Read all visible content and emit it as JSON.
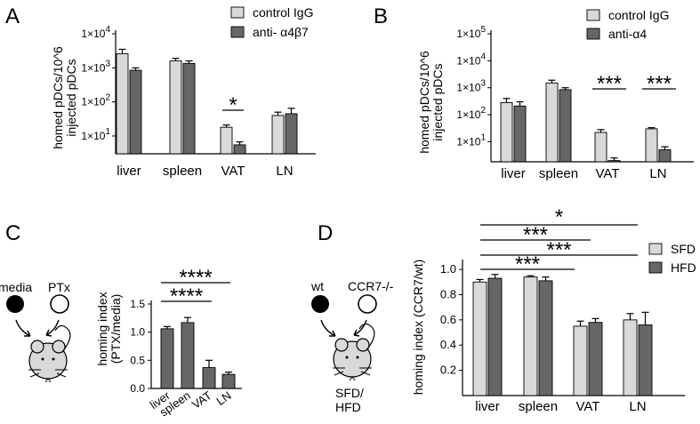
{
  "colors": {
    "light": "#d9d9d9",
    "dark": "#666666",
    "axis": "#000000"
  },
  "panels": {
    "A": "A",
    "B": "B",
    "C": "C",
    "D": "D"
  },
  "chart_data": [
    {
      "id": "A",
      "type": "bar",
      "scale": "log",
      "ylabel_lines": [
        "homed pDCs/10^6",
        "injected pDCs"
      ],
      "yticks": [
        {
          "value": 10,
          "base": "1×10",
          "exp": "1"
        },
        {
          "value": 100,
          "base": "1×10",
          "exp": "2"
        },
        {
          "value": 1000,
          "base": "1×10",
          "exp": "3"
        },
        {
          "value": 10000,
          "base": "1×10",
          "exp": "4"
        }
      ],
      "ylim": [
        3,
        10000
      ],
      "categories": [
        "liver",
        "spleen",
        "VAT",
        "LN"
      ],
      "series": [
        {
          "name": "control IgG",
          "values": [
            2600,
            1600,
            18,
            40
          ],
          "errors": [
            900,
            300,
            3,
            10
          ]
        },
        {
          "name": "anti- α4β7",
          "values": [
            850,
            1350,
            5.5,
            45
          ],
          "errors": [
            150,
            250,
            1.2,
            20
          ]
        }
      ],
      "legend": [
        "control IgG",
        "anti- α4β7"
      ],
      "significance": [
        {
          "text": "*",
          "category": "VAT"
        }
      ]
    },
    {
      "id": "B",
      "type": "bar",
      "scale": "log",
      "ylabel_lines": [
        "homed pDCs/10^6",
        "injected pDCs"
      ],
      "yticks": [
        {
          "value": 10,
          "base": "1×10",
          "exp": "1"
        },
        {
          "value": 100,
          "base": "1×10",
          "exp": "2"
        },
        {
          "value": 1000,
          "base": "1×10",
          "exp": "3"
        },
        {
          "value": 10000,
          "base": "1×10",
          "exp": "4"
        },
        {
          "value": 100000,
          "base": "1×10",
          "exp": "5"
        }
      ],
      "ylim": [
        1.8,
        100000
      ],
      "categories": [
        "liver",
        "spleen",
        "VAT",
        "LN"
      ],
      "series": [
        {
          "name": "control IgG",
          "values": [
            280,
            1500,
            22,
            30
          ],
          "errors": [
            120,
            400,
            6,
            3
          ]
        },
        {
          "name": "anti-α4",
          "values": [
            210,
            850,
            2.0,
            5
          ],
          "errors": [
            90,
            150,
            0.5,
            1.5
          ]
        }
      ],
      "legend": [
        "control IgG",
        "anti-α4"
      ],
      "significance": [
        {
          "text": "***",
          "category": "VAT"
        },
        {
          "text": "***",
          "category": "LN"
        }
      ]
    },
    {
      "id": "C",
      "type": "bar",
      "scale": "linear",
      "ylabel_lines": [
        "homing index",
        "(PTX/media)"
      ],
      "ylim": [
        0,
        1.5
      ],
      "yticks": [
        "0.0",
        "0.5",
        "1.0",
        "1.5"
      ],
      "categories": [
        "liver",
        "spleen",
        "VAT",
        "LN"
      ],
      "series": [
        {
          "name": "PTX/media",
          "values": [
            1.06,
            1.17,
            0.37,
            0.25
          ],
          "errors": [
            0.04,
            0.09,
            0.13,
            0.04
          ]
        }
      ],
      "significance": [
        {
          "text": "****",
          "from": "liver",
          "to": "LN"
        },
        {
          "text": "****",
          "from": "liver",
          "to": "VAT"
        }
      ]
    },
    {
      "id": "D",
      "type": "bar",
      "scale": "linear",
      "ylabel": "homing index (CCR7/wt)",
      "ylim": [
        0,
        1.05
      ],
      "yticks": [
        "0.2",
        "0.4",
        "0.6",
        "0.8",
        "1.0"
      ],
      "categories": [
        "liver",
        "spleen",
        "VAT",
        "LN"
      ],
      "series": [
        {
          "name": "SFD",
          "values": [
            0.9,
            0.94,
            0.55,
            0.6
          ],
          "errors": [
            0.02,
            0.01,
            0.04,
            0.05
          ]
        },
        {
          "name": "HFD",
          "values": [
            0.93,
            0.91,
            0.58,
            0.56
          ],
          "errors": [
            0.03,
            0.03,
            0.03,
            0.1
          ]
        }
      ],
      "legend": [
        "SFD",
        "HFD"
      ],
      "significance": [
        {
          "text": "*",
          "from": "liver",
          "to": "LN"
        },
        {
          "text": "***",
          "from": "liver",
          "to": "VAT"
        },
        {
          "text": "***",
          "from": "liver",
          "to": "LN"
        },
        {
          "text": "***",
          "from": "liver",
          "to": "VAT"
        }
      ]
    }
  ],
  "schematics": {
    "C": {
      "left": "media",
      "right": "PTx"
    },
    "D": {
      "left": "wt",
      "right": "CCR7-/-",
      "bottom_line1": "SFD/",
      "bottom_line2": "HFD"
    }
  }
}
